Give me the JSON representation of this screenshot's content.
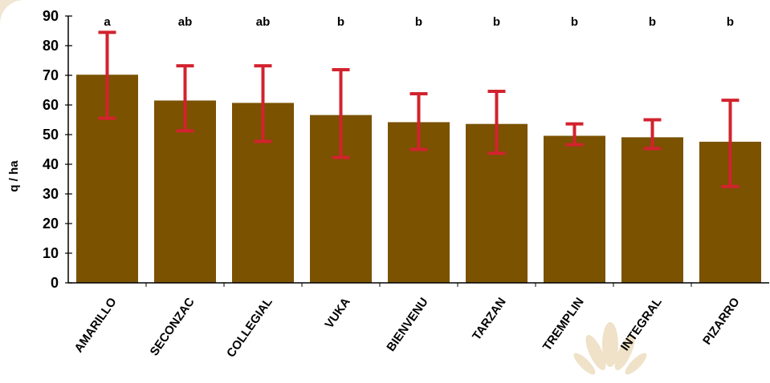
{
  "chart_data": {
    "type": "bar",
    "ylabel": "q / ha",
    "xlabel": "",
    "title": "",
    "ylim": [
      0,
      90
    ],
    "yticks": [
      0,
      10,
      20,
      30,
      40,
      50,
      60,
      70,
      80,
      90
    ],
    "categories": [
      "AMARILLO",
      "SECONZAC",
      "COLLEGIAL",
      "VUKA",
      "BIENVENU",
      "TARZAN",
      "TREMPLIN",
      "INTEGRAL",
      "PIZARRO"
    ],
    "values": [
      70.2,
      61.5,
      60.7,
      56.6,
      54.2,
      53.6,
      49.6,
      49.1,
      47.6
    ],
    "error_low": [
      55.5,
      51.3,
      47.7,
      42.3,
      45.0,
      43.7,
      46.6,
      45.3,
      32.5
    ],
    "error_high": [
      84.5,
      73.2,
      73.2,
      71.9,
      63.8,
      64.6,
      53.6,
      55.0,
      61.6
    ],
    "significance_letters": [
      "a",
      "ab",
      "ab",
      "b",
      "b",
      "b",
      "b",
      "b",
      "b"
    ],
    "grid": false,
    "legend": "none",
    "colors": {
      "bar": "#7a5200",
      "error_bar": "#d2232e",
      "axis": "#000000",
      "watermark": "#efe2c8",
      "background_corner": "#f1e6d2"
    }
  }
}
